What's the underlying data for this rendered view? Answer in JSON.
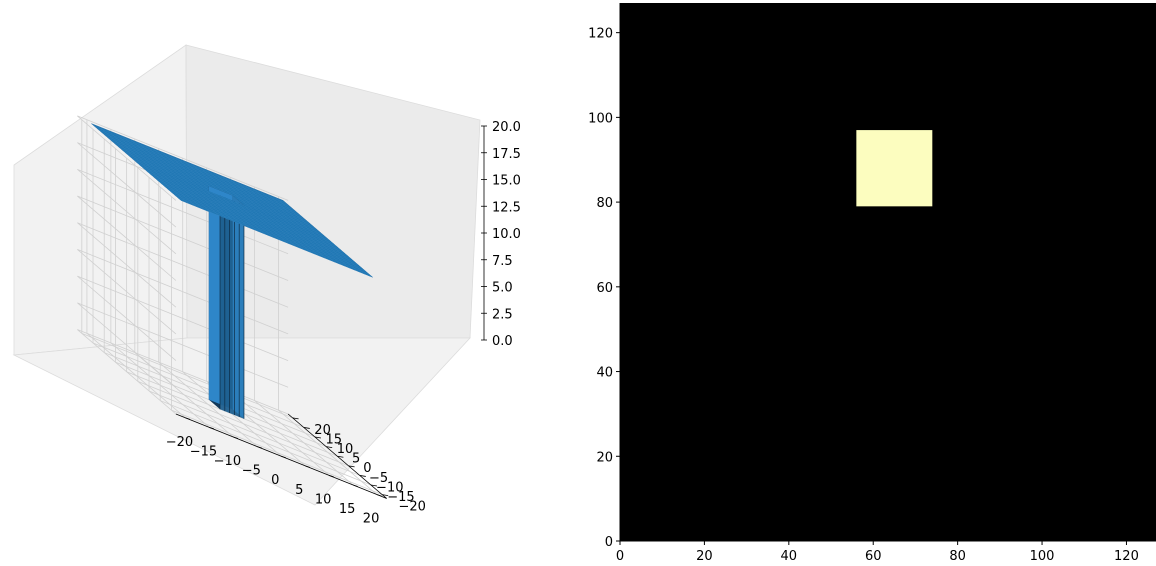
{
  "chart_data": [
    {
      "type": "surface3d",
      "title": "",
      "color": "#1f77b4",
      "x_ticks": [
        -20,
        -15,
        -10,
        -5,
        0,
        5,
        10,
        15,
        20
      ],
      "y_ticks": [
        -20,
        -15,
        -10,
        -5,
        0,
        5,
        10,
        15,
        20
      ],
      "z_ticks": [
        "0.0",
        "2.5",
        "5.0",
        "7.5",
        "10.0",
        "12.5",
        "15.0",
        "17.5",
        "20.0"
      ],
      "xlim": [
        -22,
        22
      ],
      "ylim": [
        -22,
        22
      ],
      "zlim": [
        0,
        20
      ],
      "surface": {
        "plateau_height": 20,
        "well_depth": 0,
        "well_x_range": [
          -2.5,
          2.5
        ],
        "well_y_range": [
          0,
          5
        ],
        "extent": [
          -20,
          20
        ]
      },
      "grid": true
    },
    {
      "type": "heatmap",
      "title": "",
      "x_ticks": [
        0,
        20,
        40,
        60,
        80,
        100,
        120
      ],
      "y_ticks": [
        0,
        20,
        40,
        60,
        80,
        100,
        120
      ],
      "xlim": [
        0,
        127
      ],
      "ylim": [
        0,
        127
      ],
      "background_color": "#000000",
      "highlight_color": "#fcfdbf",
      "highlight_region": {
        "x": [
          56,
          74
        ],
        "y": [
          79,
          97
        ]
      },
      "grid": false
    }
  ]
}
